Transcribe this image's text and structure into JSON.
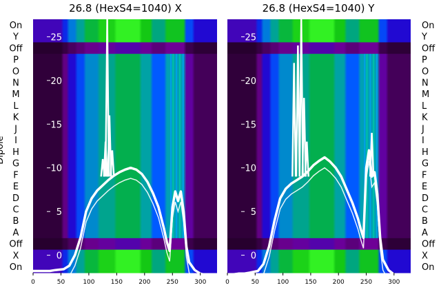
{
  "chart_data": [
    {
      "type": "heatmap",
      "title": "26.8 (HexS4=1040) X",
      "ylabel": "Dipole",
      "row_labels": [
        "On",
        "Y",
        "Off",
        "P",
        "O",
        "N",
        "M",
        "L",
        "K",
        "J",
        "I",
        "H",
        "G",
        "F",
        "E",
        "D",
        "C",
        "B",
        "A",
        "Off",
        "X",
        "On"
      ],
      "x_ticks": [
        0,
        50,
        100,
        150,
        200,
        250,
        300
      ],
      "xlim": [
        0,
        330
      ],
      "inner_y_ticks": [
        25,
        20,
        15,
        10,
        5,
        0
      ],
      "inner_ylim": [
        -2,
        27
      ],
      "profile": {
        "x": [
          0,
          10,
          20,
          30,
          40,
          55,
          65,
          75,
          85,
          95,
          105,
          115,
          125,
          135,
          145,
          155,
          165,
          175,
          185,
          195,
          205,
          215,
          225,
          235,
          240,
          245,
          250,
          255,
          260,
          265,
          270,
          275,
          280,
          290,
          300,
          310,
          320,
          330
        ],
        "y": [
          -1.8,
          -1.8,
          -1.8,
          -1.8,
          -1.7,
          -1.6,
          -1.2,
          0,
          2,
          5,
          6.5,
          7.4,
          8,
          8.6,
          9.1,
          9.5,
          9.8,
          10,
          9.8,
          9.3,
          8.4,
          7.1,
          5.5,
          3,
          1.5,
          0.5,
          5.5,
          7.3,
          6.2,
          7.3,
          5,
          1,
          -0.8,
          -1.7,
          -2.1,
          -2.3,
          -2.3,
          -2.3
        ]
      },
      "spikes": [
        {
          "x": 125,
          "y": 11
        },
        {
          "x": 130,
          "y": 13
        },
        {
          "x": 133,
          "y": 27
        },
        {
          "x": 137,
          "y": 16
        },
        {
          "x": 142,
          "y": 12
        }
      ]
    },
    {
      "type": "heatmap",
      "title": "26.8 (HexS4=1040) Y",
      "row_labels": [
        "On",
        "Y",
        "Off",
        "P",
        "O",
        "N",
        "M",
        "L",
        "K",
        "J",
        "I",
        "H",
        "G",
        "F",
        "E",
        "D",
        "C",
        "B",
        "A",
        "Off",
        "X",
        "On"
      ],
      "x_ticks": [
        0,
        50,
        100,
        150,
        200,
        250,
        300
      ],
      "xlim": [
        0,
        330
      ],
      "inner_y_ticks": [
        25,
        20,
        15,
        10,
        5,
        0
      ],
      "inner_ylim": [
        -2,
        27
      ],
      "profile": {
        "x": [
          0,
          10,
          20,
          30,
          40,
          55,
          65,
          75,
          85,
          95,
          105,
          115,
          125,
          135,
          145,
          155,
          165,
          175,
          185,
          195,
          205,
          215,
          225,
          235,
          240,
          245,
          250,
          255,
          260,
          265,
          270,
          275,
          280,
          290,
          300,
          310,
          320,
          330
        ],
        "y": [
          -2.2,
          -2.2,
          -2.1,
          -2.1,
          -2,
          -1.8,
          -1,
          1,
          4,
          6.5,
          7.6,
          8.2,
          8.6,
          9,
          9.6,
          10.3,
          10.8,
          11.2,
          10.7,
          10,
          9,
          7.5,
          6,
          4.2,
          3,
          2,
          10,
          12,
          9,
          9.5,
          7,
          2,
          -0.5,
          -1.7,
          -2.2,
          -2.4,
          -2.4,
          -2.4
        ]
      },
      "spikes": [
        {
          "x": 120,
          "y": 22
        },
        {
          "x": 127,
          "y": 24
        },
        {
          "x": 133,
          "y": 27
        },
        {
          "x": 138,
          "y": 18
        },
        {
          "x": 143,
          "y": 13
        },
        {
          "x": 260,
          "y": 14
        }
      ]
    }
  ]
}
